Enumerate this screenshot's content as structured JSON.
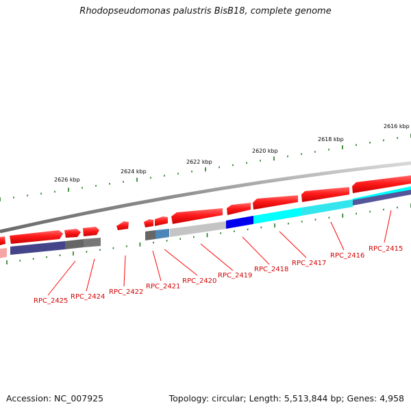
{
  "title": "Rhodopseudomonas palustris BisB18, complete genome",
  "footer": {
    "accession": "Accession: NC_007925",
    "summary": "Topology: circular; Length: 5,513,844 bp; Genes: 4,958"
  },
  "scale_ticks": [
    "2626 kbp",
    "2624 kbp",
    "2622 kbp",
    "2620 kbp",
    "2618 kbp",
    "2616 kbp"
  ],
  "gene_labels": [
    "RPC_2425",
    "RPC_2424",
    "RPC_2422",
    "RPC_2421",
    "RPC_2420",
    "RPC_2419",
    "RPC_2418",
    "RPC_2417",
    "RPC_2416",
    "RPC_2415"
  ],
  "colors": {
    "gene_forward": "#ff1a1a",
    "gene_label": "#d40000",
    "backbone": "#9a9a9a",
    "tick": "#1a7a1a",
    "cog_dark_blue": "#44448a",
    "cog_grey": "#666666",
    "cog_steel_blue": "#4a86b8",
    "cog_light_grey": "#bbbbbb",
    "cog_blue": "#0000ee",
    "cog_cyan": "#00ffff"
  }
}
